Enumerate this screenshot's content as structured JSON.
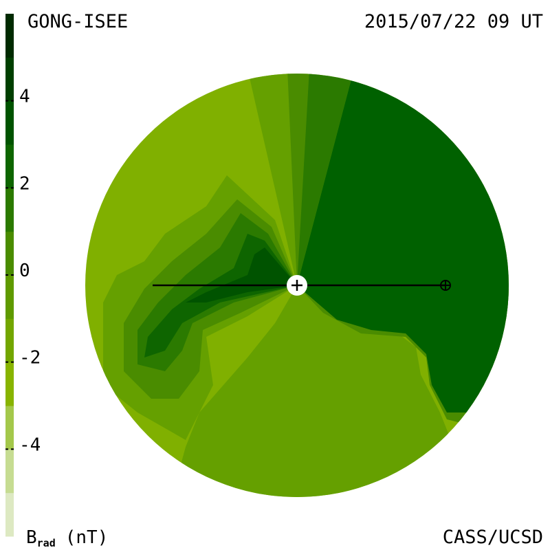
{
  "header": {
    "title": "GONG-ISEE",
    "date": "2015/07/22 09 UT"
  },
  "footer": {
    "credit": "CASS/UCSD"
  },
  "colorbar": {
    "label": "B",
    "label_subscript": "rad",
    "label_unit": "(nT)",
    "lim": [
      -6,
      6
    ],
    "ticks": [
      4,
      2,
      0,
      -2,
      -4
    ],
    "colors": [
      "#dde9c2",
      "#c6dc92",
      "#a4c84b",
      "#88b400",
      "#73a600",
      "#5f9a00",
      "#4a8c00",
      "#2b7a00",
      "#0e6500",
      "#005300",
      "#003f00",
      "#002a00"
    ]
  }
}
